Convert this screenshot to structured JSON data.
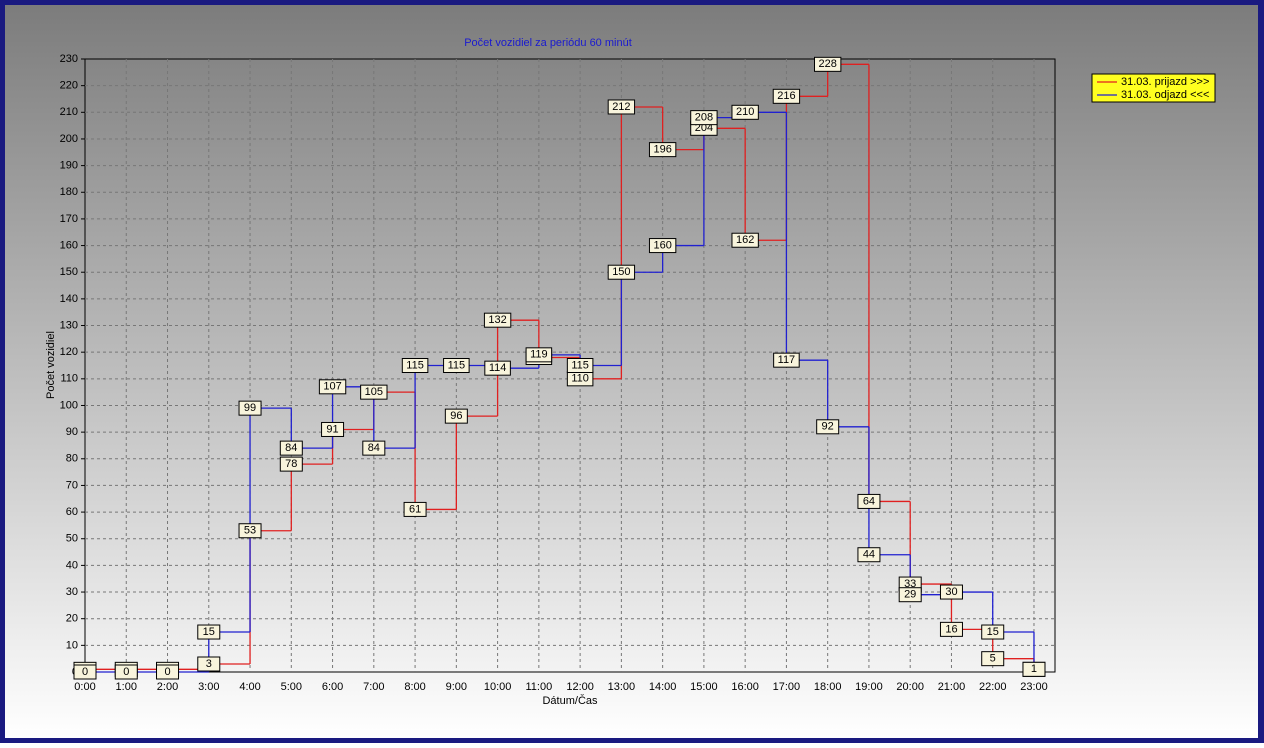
{
  "chart_data": {
    "type": "step",
    "title": "Počet vozidiel za periódu 60 minút",
    "y_label": "Počet vozidiel",
    "x_label": "Dátum/Čas",
    "categories": [
      "0:00",
      "1:00",
      "2:00",
      "3:00",
      "4:00",
      "5:00",
      "6:00",
      "7:00",
      "8:00",
      "9:00",
      "10:00",
      "11:00",
      "12:00",
      "13:00",
      "14:00",
      "15:00",
      "16:00",
      "17:00",
      "18:00",
      "19:00",
      "20:00",
      "21:00",
      "22:00",
      "23:00"
    ],
    "series": [
      {
        "name": "31.03. prijazd >>>",
        "color": "#e02020",
        "values": [
          1,
          1,
          1,
          3,
          53,
          78,
          91,
          105,
          61,
          96,
          132,
          118,
          110,
          212,
          196,
          204,
          162,
          216,
          228,
          64,
          33,
          16,
          5,
          1
        ]
      },
      {
        "name": "31.03. odjazd <<<",
        "color": "#2020d0",
        "values": [
          0,
          0,
          0,
          15,
          99,
          84,
          107,
          84,
          115,
          115,
          114,
          119,
          115,
          150,
          160,
          208,
          210,
          117,
          92,
          44,
          29,
          30,
          15,
          1
        ]
      }
    ],
    "ylim": [
      0,
      230
    ],
    "yticks": [
      0,
      10,
      20,
      30,
      40,
      50,
      60,
      70,
      80,
      90,
      100,
      110,
      120,
      130,
      140,
      150,
      160,
      170,
      180,
      190,
      200,
      210,
      220,
      230
    ],
    "grid": true,
    "legend": "top-right"
  }
}
